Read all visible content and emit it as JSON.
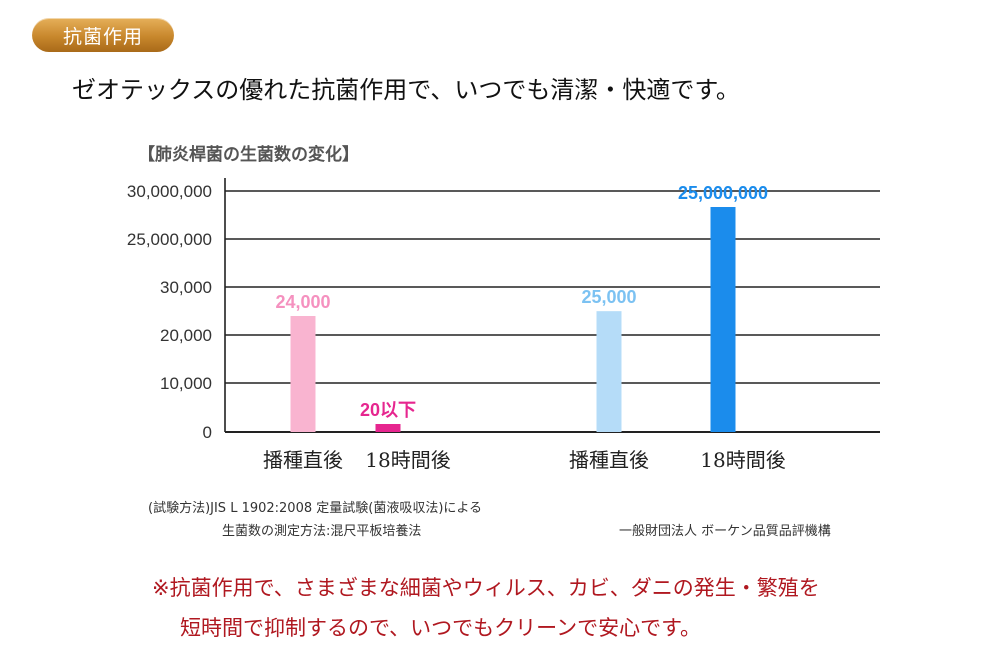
{
  "badge": {
    "label": "抗菌作用"
  },
  "headline": "ゼオテックスの優れた抗菌作用で、いつでも清潔・快適です。",
  "chart_data": {
    "type": "bar",
    "title": "【肺炎桿菌の生菌数の変化】",
    "y_ticks": [
      "0",
      "10,000",
      "20,000",
      "30,000",
      "25,000,000",
      "30,000,000"
    ],
    "axis_break": true,
    "categories": [
      "播種直後",
      "18時間後",
      "播種直後",
      "18時間後"
    ],
    "values": [
      24000,
      20,
      25000,
      25000000
    ],
    "data_labels": [
      "24,000",
      "20以下",
      "25,000",
      "25,000,000"
    ],
    "colors": [
      "#f9b4d0",
      "#e6268f",
      "#b5dcf8",
      "#1b8cec"
    ],
    "label_colors": [
      "#f591bf",
      "#e6268f",
      "#7cc2f2",
      "#1b8cec"
    ]
  },
  "method": {
    "line1": "(試験方法)JIS L 1902:2008 定量試験(菌液吸収法)による",
    "line2": "生菌数の測定方法:混尺平板培養法",
    "org": "一般財団法人 ボーケン品質品評機構"
  },
  "note": {
    "line1": "※抗菌作用で、さまざまな細菌やウィルス、カビ、ダニの発生・繁殖を",
    "line2": "短時間で抑制するので、いつでもクリーンで安心です。"
  }
}
